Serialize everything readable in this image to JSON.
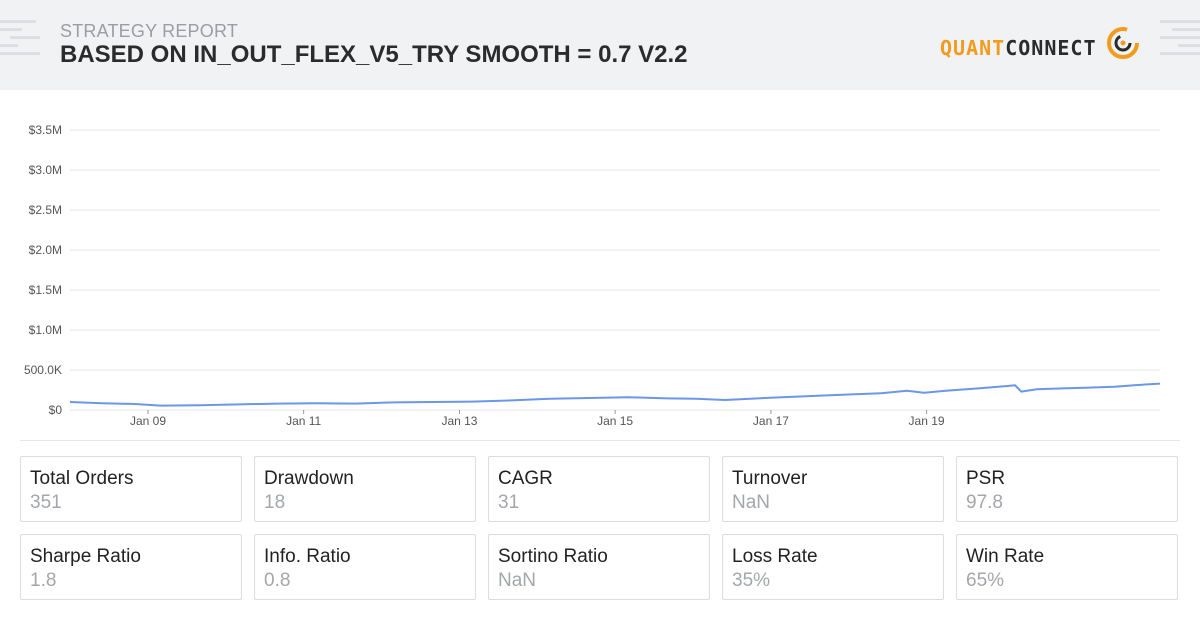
{
  "header": {
    "subtitle": "STRATEGY REPORT",
    "title": "BASED ON IN_OUT_FLEX_V5_TRY SMOOTH = 0.7 V2.2",
    "logo_left": "QUANT",
    "logo_right": "CONNECT"
  },
  "colors": {
    "line": "#6b97e8",
    "accent": "#f29c1f",
    "grid": "#e6e6e6"
  },
  "chart_data": {
    "type": "line",
    "title": "",
    "xlabel": "",
    "ylabel": "",
    "ylim": [
      0,
      3500000
    ],
    "yticks": [
      {
        "value": 0,
        "label": "$0"
      },
      {
        "value": 500000,
        "label": "500.0K"
      },
      {
        "value": 1000000,
        "label": "$1.0M"
      },
      {
        "value": 1500000,
        "label": "$1.5M"
      },
      {
        "value": 2000000,
        "label": "$2.0M"
      },
      {
        "value": 2500000,
        "label": "$2.5M"
      },
      {
        "value": 3000000,
        "label": "$3.0M"
      },
      {
        "value": 3500000,
        "label": "$3.5M"
      }
    ],
    "xlim": [
      "2008-01-01",
      "2021-12-31"
    ],
    "xticks": [
      {
        "value": "2009-01-01",
        "label": "Jan 09"
      },
      {
        "value": "2011-01-01",
        "label": "Jan 11"
      },
      {
        "value": "2013-01-01",
        "label": "Jan 13"
      },
      {
        "value": "2015-01-01",
        "label": "Jan 15"
      },
      {
        "value": "2017-01-01",
        "label": "Jan 17"
      },
      {
        "value": "2019-01-01",
        "label": "Jan 19"
      }
    ],
    "grid": true,
    "series": [
      {
        "x": [
          "2008-01-01",
          "2008-06-01",
          "2008-11-01",
          "2009-03-01",
          "2009-09-01",
          "2010-03-01",
          "2010-09-01",
          "2011-03-01",
          "2011-09-01",
          "2012-03-01",
          "2012-09-01",
          "2013-03-01",
          "2013-09-01",
          "2014-03-01",
          "2014-09-01",
          "2015-03-01",
          "2015-09-01",
          "2016-01-15",
          "2016-06-01",
          "2016-12-01",
          "2017-06-01",
          "2017-12-01",
          "2018-06-01",
          "2018-10-01",
          "2018-12-20",
          "2019-04-01",
          "2019-09-01",
          "2020-01-15",
          "2020-02-20",
          "2020-03-20",
          "2020-06-01",
          "2020-10-01",
          "2021-02-01",
          "2021-06-01",
          "2021-09-01",
          "2021-12-31"
        ],
        "values": [
          100000,
          85000,
          75000,
          55000,
          60000,
          70000,
          80000,
          85000,
          80000,
          95000,
          100000,
          105000,
          120000,
          140000,
          150000,
          160000,
          145000,
          140000,
          125000,
          150000,
          170000,
          190000,
          210000,
          240000,
          215000,
          240000,
          270000,
          300000,
          310000,
          230000,
          260000,
          270000,
          280000,
          290000,
          310000,
          330000
        ]
      }
    ]
  },
  "stats": [
    {
      "label": "Total Orders",
      "value": "351"
    },
    {
      "label": "Drawdown",
      "value": "18"
    },
    {
      "label": "CAGR",
      "value": "31"
    },
    {
      "label": "Turnover",
      "value": "NaN"
    },
    {
      "label": "PSR",
      "value": "97.8"
    },
    {
      "label": "Sharpe Ratio",
      "value": "1.8"
    },
    {
      "label": "Info. Ratio",
      "value": "0.8"
    },
    {
      "label": "Sortino Ratio",
      "value": "NaN"
    },
    {
      "label": "Loss Rate",
      "value": "35%"
    },
    {
      "label": "Win Rate",
      "value": "65%"
    }
  ]
}
